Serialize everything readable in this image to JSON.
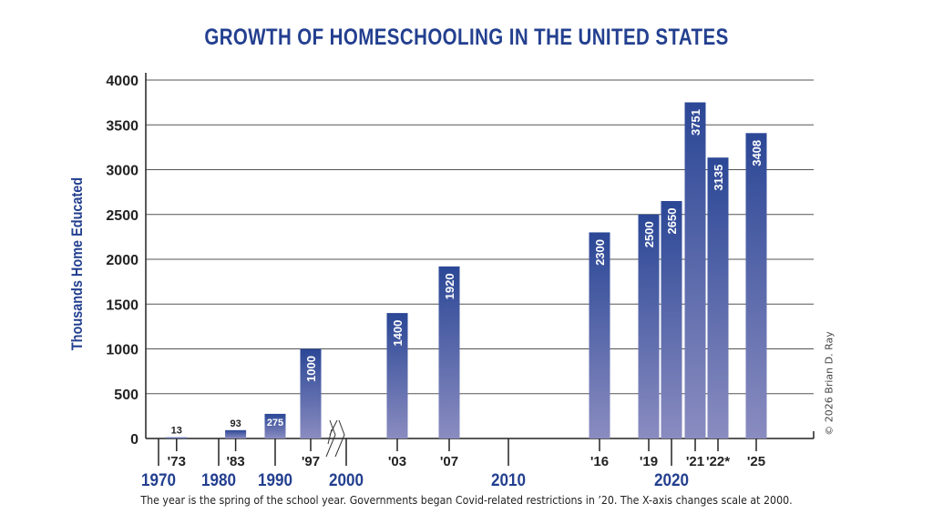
{
  "chart_data": {
    "type": "bar",
    "title": "GROWTH OF HOMESCHOOLING IN THE UNITED STATES",
    "ylabel": "Thousands Home Educated",
    "xlabel": "",
    "ylim": [
      0,
      4000
    ],
    "yticks": [
      0,
      500,
      1000,
      1500,
      2000,
      2500,
      3000,
      3500,
      4000
    ],
    "grid": true,
    "bars": [
      {
        "year": 1973,
        "value": 13,
        "label": "13",
        "tick_label": "'73"
      },
      {
        "year": 1983,
        "value": 93,
        "label": "93",
        "tick_label": "'83"
      },
      {
        "year": 1990,
        "value": 275,
        "label": "275",
        "tick_label": ""
      },
      {
        "year": 1997,
        "value": 1000,
        "label": "1000",
        "tick_label": "'97"
      },
      {
        "year": 2003,
        "value": 1400,
        "label": "1400",
        "tick_label": "'03"
      },
      {
        "year": 2007,
        "value": 1920,
        "label": "1920",
        "tick_label": "'07"
      },
      {
        "year": 2016,
        "value": 2300,
        "label": "2300",
        "tick_label": "'16"
      },
      {
        "year": 2019,
        "value": 2500,
        "label": "2500",
        "tick_label": "'19"
      },
      {
        "year": 2020,
        "value": 2650,
        "label": "2650",
        "tick_label": ""
      },
      {
        "year": 2021,
        "value": 3751,
        "label": "3751",
        "tick_label": "'21"
      },
      {
        "year": 2022,
        "value": 3135,
        "label": "3135",
        "tick_label": "'22*"
      },
      {
        "year": 2025,
        "value": 3408,
        "label": "3408",
        "tick_label": "'25"
      }
    ],
    "decades": [
      "1970",
      "1980",
      "1990",
      "2000",
      "2010",
      "2020"
    ],
    "axis_note": "X-axis changes scale at 2000"
  },
  "caption": "The year is the spring of the school year. Governments began Covid-related restrictions in ’20. The X-axis changes scale at 2000.",
  "copyright": "© 2026 Brian D. Ray",
  "colors": {
    "title": "#233f8f",
    "bar_top": "#2b4796",
    "bar_bottom": "#8a8cc0",
    "grid": "#555555"
  }
}
